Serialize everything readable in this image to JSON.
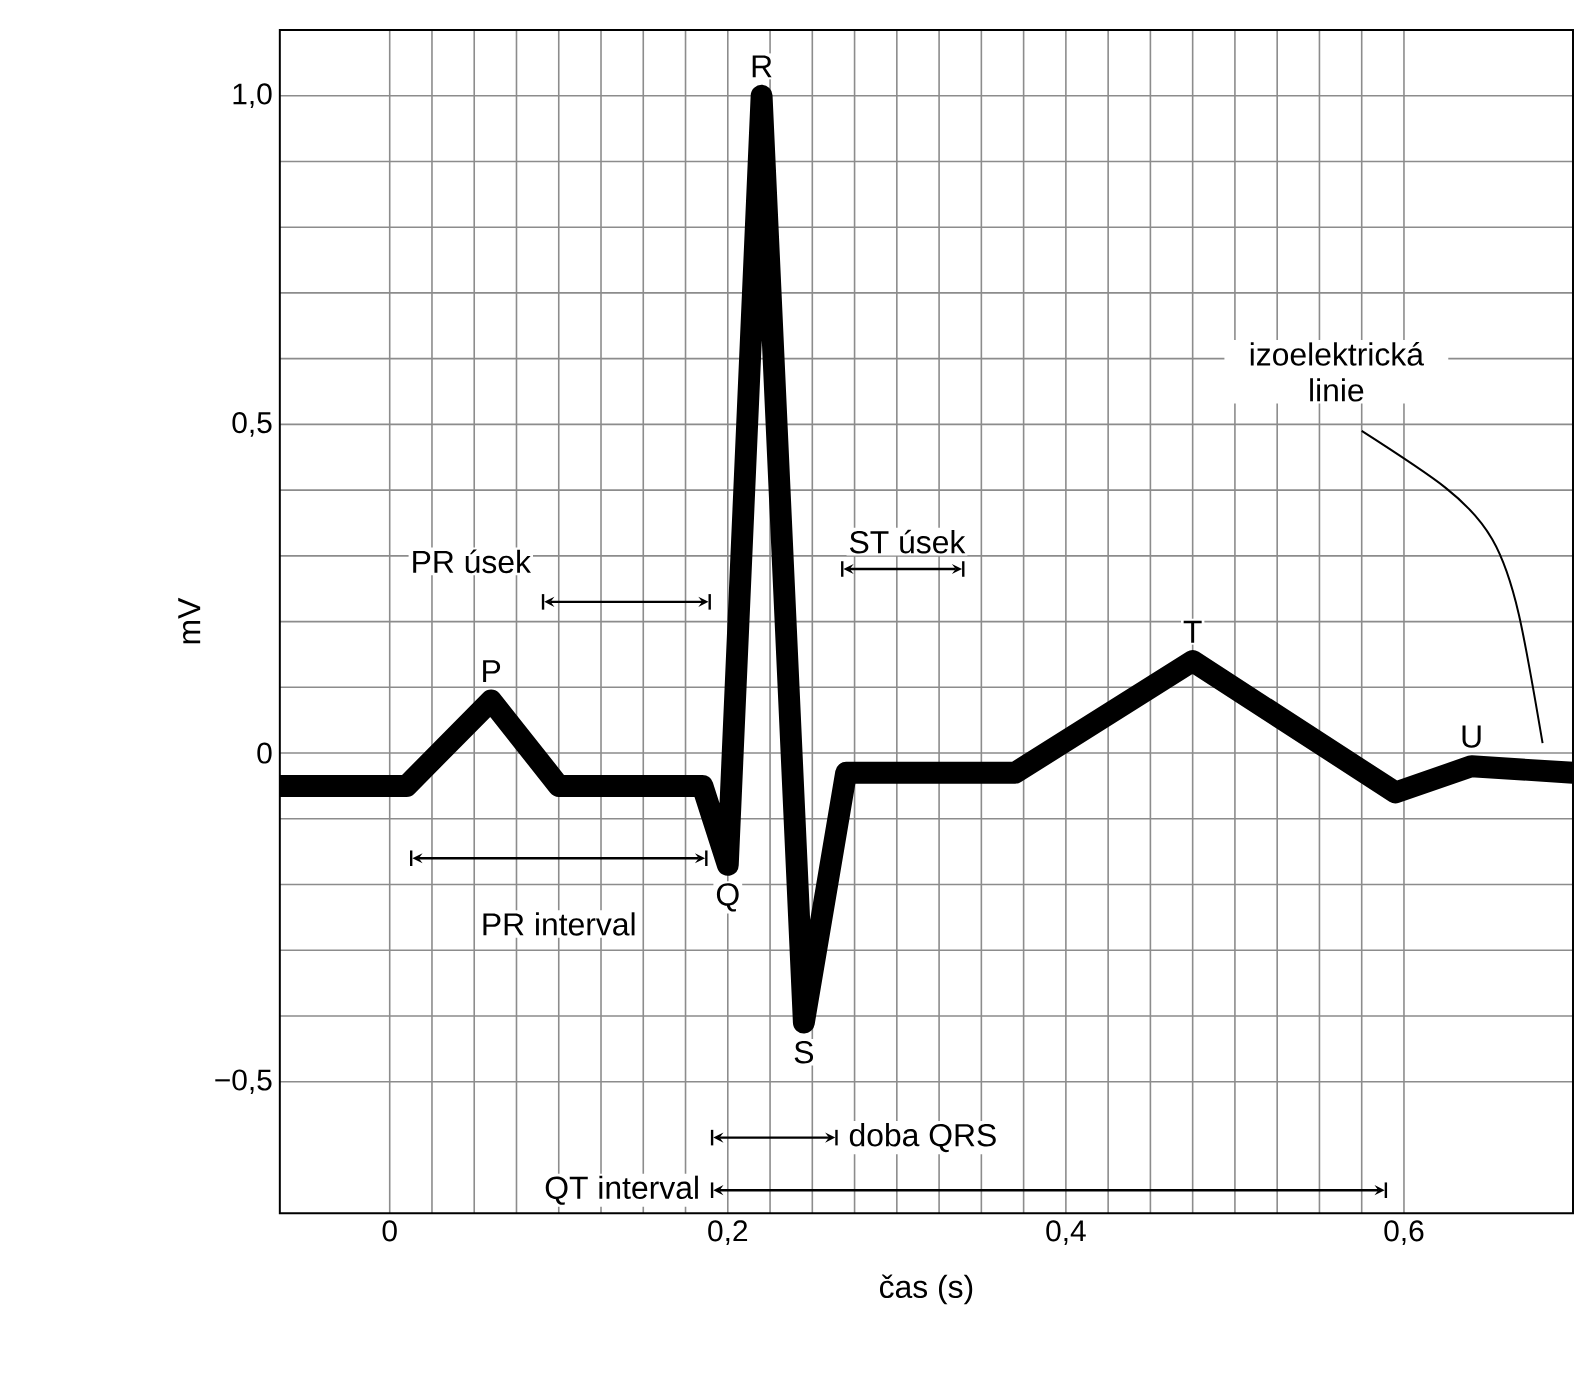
{
  "chart_data": {
    "type": "line",
    "xlabel": "čas (s)",
    "ylabel": "mV",
    "x": [
      -0.065,
      0.01,
      0.06,
      0.1,
      0.185,
      0.2,
      0.22,
      0.245,
      0.27,
      0.37,
      0.475,
      0.595,
      0.64,
      0.7
    ],
    "series": [
      {
        "color": "#000000",
        "values": [
          -0.05,
          -0.05,
          0.08,
          -0.05,
          -0.05,
          -0.17,
          1.0,
          -0.41,
          -0.03,
          -0.03,
          0.14,
          -0.06,
          -0.02,
          -0.03
        ]
      }
    ],
    "xlim": [
      -0.065,
      0.7
    ],
    "ylim": [
      -0.7,
      1.1
    ],
    "xticks": [
      {
        "value": 0,
        "label": "0"
      },
      {
        "value": 0.2,
        "label": "0,2"
      },
      {
        "value": 0.4,
        "label": "0,4"
      },
      {
        "value": 0.6,
        "label": "0,6"
      }
    ],
    "yticks": [
      {
        "value": -0.5,
        "label": "−0,5"
      },
      {
        "value": 0,
        "label": "0"
      },
      {
        "value": 0.5,
        "label": "0,5"
      },
      {
        "value": 1.0,
        "label": "1,0"
      }
    ],
    "grid": true,
    "marker": "none",
    "line_style": "solid",
    "annotations": [
      {
        "text": "P",
        "x": 0.06,
        "y": 0.08
      },
      {
        "text": "Q",
        "x": 0.2,
        "y": -0.17
      },
      {
        "text": "R",
        "x": 0.22,
        "y": 1.0
      },
      {
        "text": "S",
        "x": 0.245,
        "y": -0.41
      },
      {
        "text": "T",
        "x": 0.475,
        "y": 0.14
      },
      {
        "text": "U",
        "x": 0.64,
        "y": -0.02
      },
      "PR úsek",
      "ST úsek",
      "PR interval",
      "doba QRS",
      "QT interval",
      "izoelektrická linie"
    ]
  }
}
